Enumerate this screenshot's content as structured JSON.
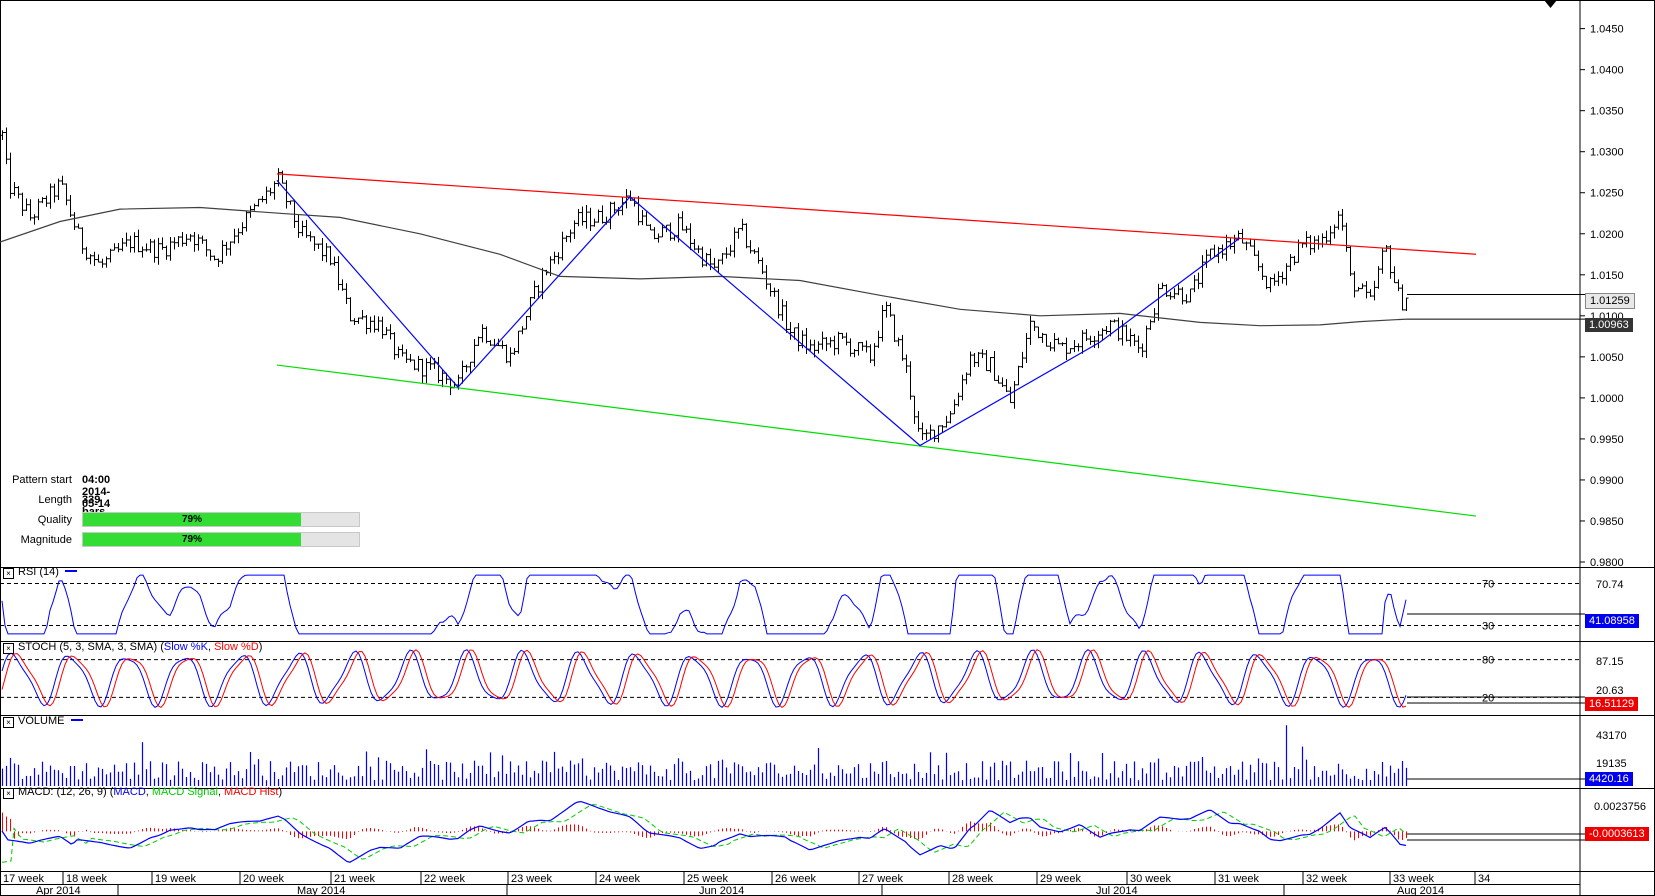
{
  "info": {
    "pattern_start_label": "Pattern start",
    "pattern_start_value": "04:00 2014-05-14",
    "length_label": "Length",
    "length_value": "339 bars",
    "quality_label": "Quality",
    "quality_value": "79%",
    "quality_fraction": 0.79,
    "magnitude_label": "Magnitude",
    "magnitude_value": "79%",
    "magnitude_fraction": 0.79
  },
  "panels": {
    "rsi_title": "RSI (14)",
    "stoch_title_prefix": "STOCH (5, 3, SMA, 3, SMA)",
    "stoch_slowk": "Slow %K",
    "stoch_slowd": "Slow %D",
    "volume_title": "VOLUME",
    "macd_title_prefix": "MACD: (12, 26, 9)",
    "macd_line": "MACD",
    "macd_signal": "MACD Signal",
    "macd_hist": "MACD Hist"
  },
  "price_tags": {
    "last": "1.01259",
    "ma": "1.00963",
    "rsi_top": "70.74",
    "rsi_value": "41.08958",
    "stoch_top": "87.15",
    "stoch_k": "20.63",
    "stoch_d": "16.51129",
    "volume_top": "43170",
    "volume_mid": "19135",
    "volume_value": "4420.16",
    "macd_top": "0.0023756",
    "macd_value": "-0.0003613"
  },
  "colors": {
    "price_bars": "#000000",
    "moving_average": "#404040",
    "resistance_line": "#ff0000",
    "support_line": "#00dd00",
    "zigzag": "#0000ff",
    "rsi": "#0000ff",
    "stoch_k": "#0000ff",
    "stoch_d": "#ff0000",
    "volume": "#0000ff",
    "macd": "#0000ff",
    "macd_signal": "#00cc00",
    "macd_hist": "#ff0000"
  },
  "chart_data": {
    "type": "line",
    "price_axis": {
      "ylim": [
        0.98,
        1.048
      ],
      "ticks": [
        "1.0450",
        "1.0400",
        "1.0350",
        "1.0300",
        "1.0250",
        "1.0200",
        "1.0150",
        "1.0100",
        "1.0050",
        "1.0000",
        "0.9950",
        "0.9900",
        "0.9850",
        "0.9800"
      ]
    },
    "price_path": [
      [
        0,
        1.034
      ],
      [
        8,
        1.026
      ],
      [
        30,
        1.022
      ],
      [
        60,
        1.026
      ],
      [
        80,
        1.019
      ],
      [
        100,
        1.016
      ],
      [
        130,
        1.019
      ],
      [
        160,
        1.018
      ],
      [
        190,
        1.02
      ],
      [
        215,
        1.017
      ],
      [
        240,
        1.021
      ],
      [
        278,
        1.0265
      ],
      [
        300,
        1.02
      ],
      [
        330,
        1.017
      ],
      [
        350,
        1.01
      ],
      [
        380,
        1.009
      ],
      [
        400,
        1.0045
      ],
      [
        430,
        1.0035
      ],
      [
        458,
        1.0015
      ],
      [
        480,
        1.0085
      ],
      [
        510,
        1.005
      ],
      [
        540,
        1.0145
      ],
      [
        575,
        1.0215
      ],
      [
        600,
        1.022
      ],
      [
        630,
        1.0245
      ],
      [
        650,
        1.0195
      ],
      [
        680,
        1.021
      ],
      [
        700,
        1.0175
      ],
      [
        715,
        1.0155
      ],
      [
        740,
        1.0205
      ],
      [
        760,
        1.016
      ],
      [
        790,
        1.008
      ],
      [
        810,
        1.006
      ],
      [
        840,
        1.007
      ],
      [
        870,
        1.005
      ],
      [
        885,
        1.011
      ],
      [
        905,
        1.004
      ],
      [
        920,
        0.9945
      ],
      [
        950,
        0.998
      ],
      [
        970,
        1.005
      ],
      [
        990,
        1.004
      ],
      [
        1010,
        0.9995
      ],
      [
        1030,
        1.009
      ],
      [
        1060,
        1.006
      ],
      [
        1080,
        1.007
      ],
      [
        1110,
        1.009
      ],
      [
        1140,
        1.006
      ],
      [
        1160,
        1.0135
      ],
      [
        1190,
        1.0125
      ],
      [
        1210,
        1.0175
      ],
      [
        1240,
        1.0195
      ],
      [
        1270,
        1.0135
      ],
      [
        1300,
        1.0185
      ],
      [
        1320,
        1.019
      ],
      [
        1340,
        1.0225
      ],
      [
        1350,
        1.0145
      ],
      [
        1370,
        1.0115
      ],
      [
        1385,
        1.0185
      ],
      [
        1400,
        1.0115
      ],
      [
        1407,
        1.0126
      ]
    ],
    "moving_average": [
      [
        0,
        1.019
      ],
      [
        60,
        1.0215
      ],
      [
        120,
        1.023
      ],
      [
        200,
        1.0232
      ],
      [
        280,
        1.0225
      ],
      [
        340,
        1.022
      ],
      [
        420,
        1.02
      ],
      [
        500,
        1.0175
      ],
      [
        560,
        1.0148
      ],
      [
        640,
        1.0145
      ],
      [
        720,
        1.0148
      ],
      [
        800,
        1.0143
      ],
      [
        880,
        1.0125
      ],
      [
        960,
        1.0108
      ],
      [
        1040,
        1.01
      ],
      [
        1120,
        1.0103
      ],
      [
        1200,
        1.0092
      ],
      [
        1260,
        1.0088
      ],
      [
        1320,
        1.0089
      ],
      [
        1360,
        1.0093
      ],
      [
        1407,
        1.0096
      ]
    ],
    "channel_resistance": [
      [
        277,
        1.0273
      ],
      [
        1476,
        1.0175
      ]
    ],
    "channel_support": [
      [
        277,
        1.004
      ],
      [
        1476,
        0.9856
      ]
    ],
    "zigzag": [
      [
        277,
        1.0265
      ],
      [
        458,
        1.0013
      ],
      [
        630,
        1.0245
      ],
      [
        920,
        0.9942
      ],
      [
        1100,
        1.0068
      ],
      [
        1240,
        1.0195
      ]
    ],
    "time_axis": {
      "week_labels": [
        "17 week",
        "18 week",
        "19 week",
        "20 week",
        "21 week",
        "22 week",
        "23 week",
        "24 week",
        "25 week",
        "26 week",
        "27 week",
        "28 week",
        "29 week",
        "30 week",
        "31 week",
        "32 week",
        "33 week",
        "34"
      ],
      "month_labels": [
        "Apr 2014",
        "May 2014",
        "Jun 2014",
        "Jul 2014",
        "Aug 2014"
      ]
    },
    "rsi": {
      "levels": [
        30,
        70
      ],
      "ylim": [
        20,
        80
      ],
      "last": 41.08958
    },
    "stochastic": {
      "levels": [
        20,
        80
      ],
      "ylim": [
        0,
        100
      ],
      "k_last": 20.63,
      "d_last": 16.51129
    },
    "volume": {
      "ylim": [
        0,
        43170
      ],
      "last": 4420.16
    },
    "macd": {
      "ylim": [
        -0.0025,
        0.0027
      ],
      "last": -0.0003613
    }
  }
}
